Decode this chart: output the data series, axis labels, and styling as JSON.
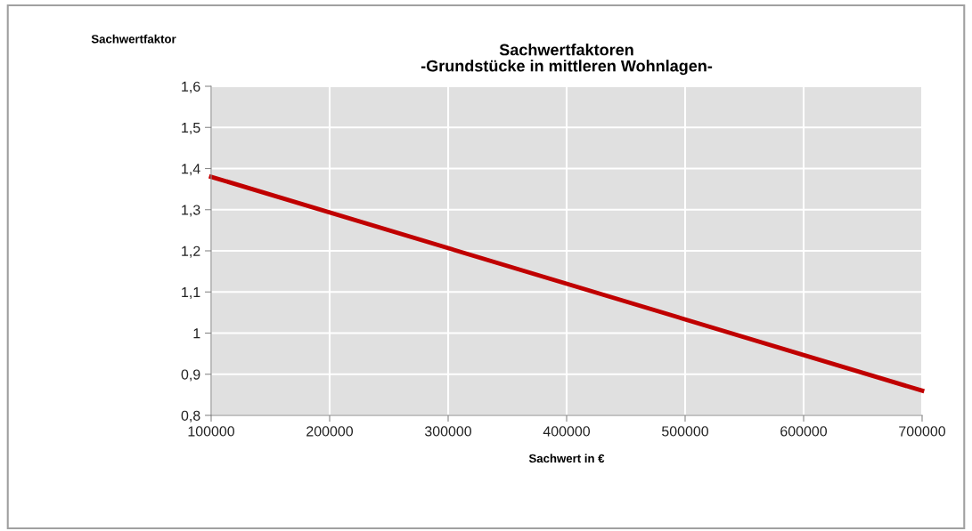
{
  "chart_data": {
    "type": "line",
    "title": "Sachwertfaktoren\n-Grundstücke in mittleren Wohnlagen-",
    "xlabel": "Sachwert in €",
    "ylabel": "Sachwertfaktor",
    "x": [
      100000,
      700000
    ],
    "series": [
      {
        "color": "#c00000",
        "values": [
          1.38,
          0.86
        ]
      }
    ],
    "xlim": [
      100000,
      700000
    ],
    "xticks": [
      100000,
      200000,
      300000,
      400000,
      500000,
      600000,
      700000
    ],
    "ylim": [
      0.8,
      1.6
    ],
    "yticks": [
      {
        "value": 0.8,
        "label": "0,8"
      },
      {
        "value": 0.9,
        "label": "0,9"
      },
      1,
      {
        "value": 1.1,
        "label": "1,1"
      },
      {
        "value": 1.2,
        "label": "1,2"
      },
      {
        "value": 1.3,
        "label": "1,3"
      },
      {
        "value": 1.4,
        "label": "1,4"
      },
      {
        "value": 1.5,
        "label": "1,5"
      },
      {
        "value": 1.6,
        "label": "1,6"
      }
    ],
    "grid": true,
    "legend": false,
    "marker": "none",
    "line_style": "solid"
  }
}
